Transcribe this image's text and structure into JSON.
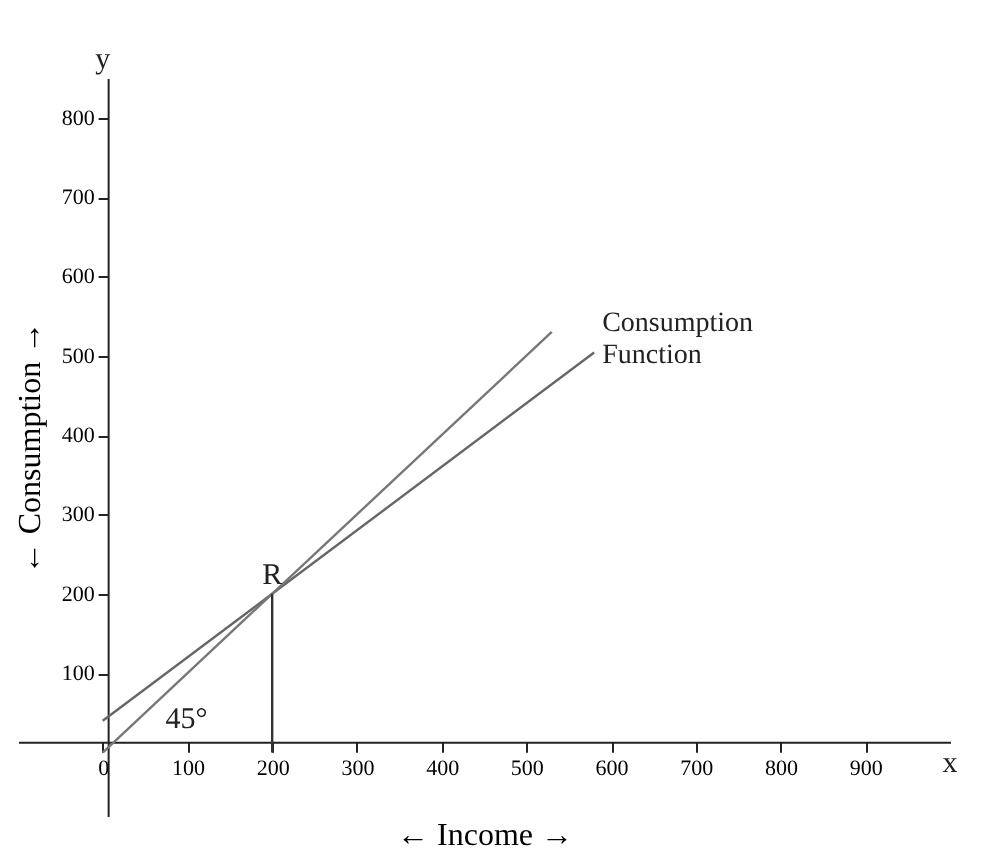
{
  "chart_data": {
    "type": "line",
    "xlabel": "← Income →",
    "ylabel": "← Consumption →",
    "xlim": [
      -100,
      1000
    ],
    "ylim": [
      -80,
      850
    ],
    "xticks": [
      0,
      100,
      200,
      300,
      400,
      500,
      600,
      700,
      800,
      900
    ],
    "yticks": [
      100,
      200,
      300,
      400,
      500,
      600,
      700,
      800
    ],
    "grid": false,
    "marker": "none",
    "line_style": "solid",
    "series": [
      {
        "name": "Consumption Function",
        "color": "#666666",
        "x": [
          0,
          200,
          580
        ],
        "values": [
          40,
          200,
          504
        ]
      },
      {
        "color": "#777777",
        "x": [
          0,
          530
        ],
        "values": [
          0,
          530
        ]
      },
      {
        "color": "#333333",
        "x": [
          200,
          200
        ],
        "values": [
          0,
          200
        ]
      }
    ],
    "annotations": [
      {
        "text": "R",
        "x": 200,
        "y": 200
      },
      "45°",
      "x",
      "y"
    ]
  }
}
